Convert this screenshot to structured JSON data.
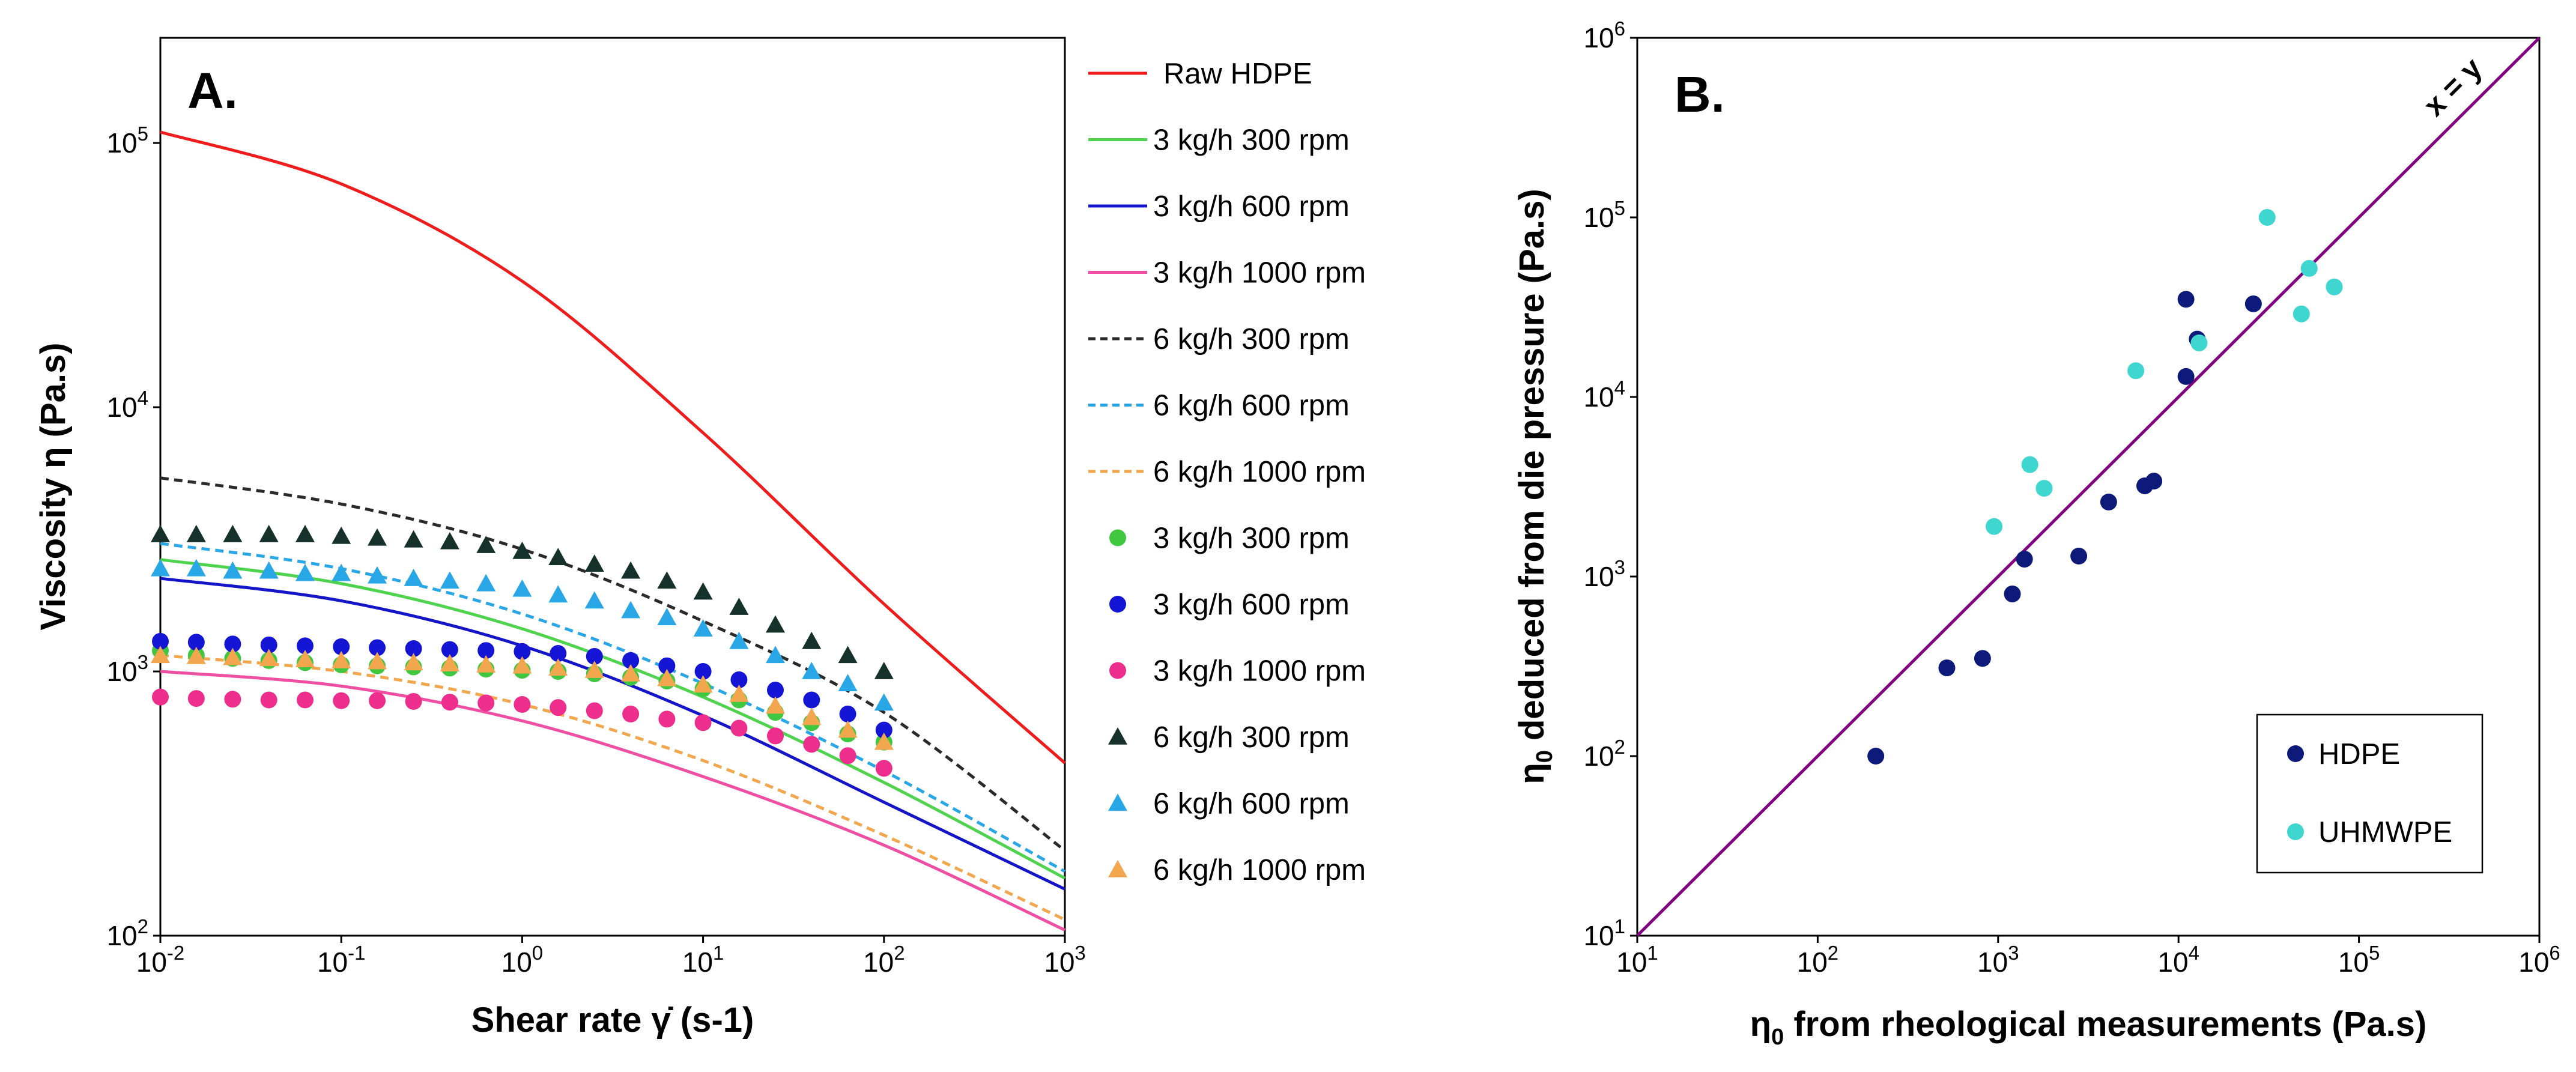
{
  "chart_data": [
    {
      "panel_label": "A.",
      "type": "line",
      "xlabel": "Shear rate γ̇ (s-1)",
      "ylabel": "Viscosity η (Pa.s)",
      "xscale": "log",
      "yscale": "log",
      "xlim": [
        0.01,
        1000
      ],
      "ylim": [
        100,
        250000
      ],
      "x_ticks": [
        0.01,
        0.1,
        1,
        10,
        100,
        1000
      ],
      "x_tick_labels": [
        {
          "base": "10",
          "exp": "-2"
        },
        {
          "base": "10",
          "exp": "-1"
        },
        {
          "base": "10",
          "exp": "0"
        },
        {
          "base": "10",
          "exp": "1"
        },
        {
          "base": "10",
          "exp": "2"
        },
        {
          "base": "10",
          "exp": "3"
        }
      ],
      "y_ticks": [
        100,
        1000,
        10000,
        100000
      ],
      "y_tick_labels": [
        {
          "base": "10",
          "exp": "2"
        },
        {
          "base": "10",
          "exp": "3"
        },
        {
          "base": "10",
          "exp": "4"
        },
        {
          "base": "10",
          "exp": "5"
        }
      ],
      "legend_position": "right-outside",
      "series": [
        {
          "name": "Raw HDPE",
          "kind": "line",
          "dash": "solid",
          "color": "#ee1c1c",
          "x": [
            0.01,
            0.1,
            1,
            10,
            100,
            1000
          ],
          "y": [
            110000,
            70000,
            30000,
            8000,
            1800,
            450
          ]
        },
        {
          "name": "3 kg/h 300 rpm",
          "kind": "line",
          "dash": "solid",
          "color": "#4fd34f",
          "x": [
            0.01,
            0.1,
            1,
            10,
            100,
            1000
          ],
          "y": [
            2650,
            2150,
            1450,
            800,
            380,
            165
          ]
        },
        {
          "name": "3 kg/h 600 rpm",
          "kind": "line",
          "dash": "solid",
          "color": "#1515c8",
          "x": [
            0.01,
            0.1,
            1,
            10,
            100,
            1000
          ],
          "y": [
            2250,
            1850,
            1250,
            680,
            320,
            150
          ]
        },
        {
          "name": "3 kg/h 1000 rpm",
          "kind": "line",
          "dash": "solid",
          "color": "#ee4fa2",
          "x": [
            0.01,
            0.1,
            1,
            10,
            100,
            1000
          ],
          "y": [
            1000,
            880,
            650,
            400,
            220,
            105
          ]
        },
        {
          "name": "6 kg/h 300 rpm",
          "kind": "line",
          "dash": "dashed",
          "color": "#2a2a2a",
          "x": [
            0.01,
            0.1,
            1,
            10,
            100,
            1000
          ],
          "y": [
            5400,
            4300,
            2900,
            1550,
            700,
            210
          ]
        },
        {
          "name": "6 kg/h 600 rpm",
          "kind": "line",
          "dash": "dashed",
          "color": "#29a6e6",
          "x": [
            0.01,
            0.1,
            1,
            10,
            100,
            1000
          ],
          "y": [
            3050,
            2450,
            1650,
            900,
            420,
            175
          ]
        },
        {
          "name": "6 kg/h 1000 rpm",
          "kind": "line",
          "dash": "dashed",
          "color": "#f2a74f",
          "x": [
            0.01,
            0.1,
            1,
            10,
            100,
            1000
          ],
          "y": [
            1150,
            1000,
            750,
            460,
            240,
            115
          ]
        },
        {
          "name": "3 kg/h 300 rpm",
          "kind": "marker",
          "marker": "circle",
          "color": "#3fc73f",
          "x": [
            0.01,
            0.0158,
            0.0251,
            0.0398,
            0.0631,
            0.1,
            0.158,
            0.251,
            0.398,
            0.631,
            1,
            1.58,
            2.51,
            3.98,
            6.31,
            10,
            15.8,
            25.1,
            39.8,
            63.1,
            100
          ],
          "y": [
            1200,
            1150,
            1120,
            1100,
            1080,
            1060,
            1050,
            1040,
            1030,
            1020,
            1010,
            1000,
            980,
            950,
            920,
            860,
            780,
            700,
            640,
            580,
            540
          ]
        },
        {
          "name": "3 kg/h 600 rpm",
          "kind": "marker",
          "marker": "circle",
          "color": "#1515d6",
          "x": [
            0.01,
            0.0158,
            0.0251,
            0.0398,
            0.0631,
            0.1,
            0.158,
            0.251,
            0.398,
            0.631,
            1,
            1.58,
            2.51,
            3.98,
            6.31,
            10,
            15.8,
            25.1,
            39.8,
            63.1,
            100
          ],
          "y": [
            1300,
            1290,
            1270,
            1260,
            1250,
            1240,
            1230,
            1220,
            1210,
            1200,
            1190,
            1170,
            1140,
            1100,
            1050,
            1000,
            930,
            850,
            780,
            690,
            600
          ]
        },
        {
          "name": "3 kg/h 1000 rpm",
          "kind": "marker",
          "marker": "circle",
          "color": "#ee2e8c",
          "x": [
            0.01,
            0.0158,
            0.0251,
            0.0398,
            0.0631,
            0.1,
            0.158,
            0.251,
            0.398,
            0.631,
            1,
            1.58,
            2.51,
            3.98,
            6.31,
            10,
            15.8,
            25.1,
            39.8,
            63.1,
            100
          ],
          "y": [
            800,
            790,
            785,
            780,
            780,
            775,
            775,
            770,
            765,
            760,
            750,
            730,
            710,
            690,
            660,
            640,
            610,
            570,
            530,
            480,
            430
          ]
        },
        {
          "name": "6 kg/h 300 rpm",
          "kind": "marker",
          "marker": "triangle",
          "color": "#15312a",
          "x": [
            0.01,
            0.0158,
            0.0251,
            0.0398,
            0.0631,
            0.1,
            0.158,
            0.251,
            0.398,
            0.631,
            1,
            1.58,
            2.51,
            3.98,
            6.31,
            10,
            15.8,
            25.1,
            39.8,
            63.1,
            100
          ],
          "y": [
            3300,
            3300,
            3300,
            3300,
            3300,
            3250,
            3200,
            3150,
            3100,
            3000,
            2850,
            2700,
            2550,
            2400,
            2200,
            2000,
            1750,
            1500,
            1300,
            1150,
            1000
          ]
        },
        {
          "name": "6 kg/h 600 rpm",
          "kind": "marker",
          "marker": "triangle",
          "color": "#29a6e6",
          "x": [
            0.01,
            0.0158,
            0.0251,
            0.0398,
            0.0631,
            0.1,
            0.158,
            0.251,
            0.398,
            0.631,
            1,
            1.58,
            2.51,
            3.98,
            6.31,
            10,
            15.8,
            25.1,
            39.8,
            63.1,
            100
          ],
          "y": [
            2450,
            2450,
            2400,
            2400,
            2350,
            2350,
            2300,
            2250,
            2200,
            2150,
            2050,
            1950,
            1850,
            1700,
            1600,
            1450,
            1300,
            1150,
            1000,
            900,
            760
          ]
        },
        {
          "name": "6 kg/h 1000 rpm",
          "kind": "marker",
          "marker": "triangle",
          "color": "#f2a74f",
          "x": [
            0.01,
            0.0158,
            0.0251,
            0.0398,
            0.0631,
            0.1,
            0.158,
            0.251,
            0.398,
            0.631,
            1,
            1.58,
            2.51,
            3.98,
            6.31,
            10,
            15.8,
            25.1,
            39.8,
            63.1,
            100
          ],
          "y": [
            1150,
            1140,
            1130,
            1120,
            1110,
            1100,
            1090,
            1080,
            1070,
            1060,
            1050,
            1030,
            1010,
            980,
            940,
            890,
            820,
            740,
            670,
            600,
            540
          ]
        }
      ]
    },
    {
      "panel_label": "B.",
      "type": "scatter",
      "xlabel_prefix": "η",
      "xlabel_sub": "0",
      "xlabel_rest": " from rheological measurements (Pa.s)",
      "ylabel_prefix": "η",
      "ylabel_sub": "0",
      "ylabel_rest": " deduced from die pressure (Pa.s)",
      "xscale": "log",
      "yscale": "log",
      "xlim": [
        10,
        1000000
      ],
      "ylim": [
        10,
        1000000
      ],
      "x_ticks": [
        10,
        100,
        1000,
        10000,
        100000,
        1000000
      ],
      "x_tick_labels": [
        {
          "base": "10",
          "exp": "1"
        },
        {
          "base": "10",
          "exp": "2"
        },
        {
          "base": "10",
          "exp": "3"
        },
        {
          "base": "10",
          "exp": "4"
        },
        {
          "base": "10",
          "exp": "5"
        },
        {
          "base": "10",
          "exp": "6"
        }
      ],
      "y_ticks": [
        10,
        100,
        1000,
        10000,
        100000,
        1000000
      ],
      "y_tick_labels": [
        {
          "base": "10",
          "exp": "1"
        },
        {
          "base": "10",
          "exp": "2"
        },
        {
          "base": "10",
          "exp": "3"
        },
        {
          "base": "10",
          "exp": "4"
        },
        {
          "base": "10",
          "exp": "5"
        },
        {
          "base": "10",
          "exp": "6"
        }
      ],
      "reference_line": {
        "label": "x = y",
        "color": "#800080"
      },
      "legend_position": "bottom-right",
      "series": [
        {
          "name": "HDPE",
          "color": "#0d1a7a",
          "points": [
            [
              210,
              100
            ],
            [
              520,
              310
            ],
            [
              820,
              350
            ],
            [
              1200,
              800
            ],
            [
              1400,
              1250
            ],
            [
              2800,
              1300
            ],
            [
              4100,
              2600
            ],
            [
              6500,
              3200
            ],
            [
              7300,
              3400
            ],
            [
              11000,
              13000
            ],
            [
              11000,
              35000
            ],
            [
              12700,
              21000
            ],
            [
              26000,
              33000
            ]
          ]
        },
        {
          "name": "UHMWPE",
          "color": "#3fd6cf",
          "points": [
            [
              950,
              1900
            ],
            [
              1500,
              4200
            ],
            [
              1800,
              3100
            ],
            [
              5800,
              14000
            ],
            [
              13000,
              20000
            ],
            [
              31000,
              100000
            ],
            [
              48000,
              29000
            ],
            [
              53000,
              52000
            ],
            [
              73000,
              41000
            ]
          ]
        }
      ]
    }
  ]
}
